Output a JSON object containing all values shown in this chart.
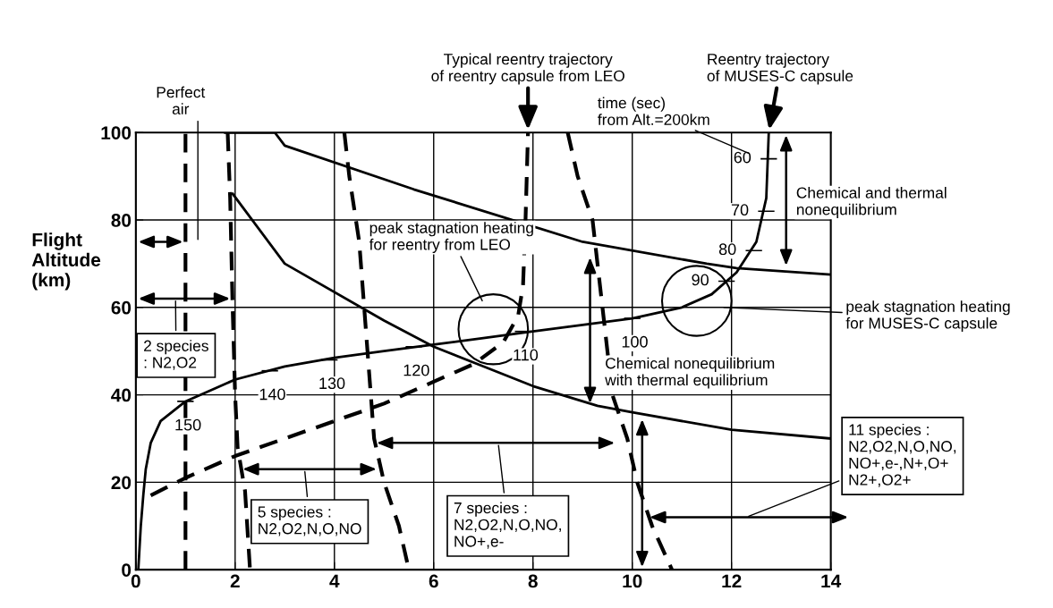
{
  "chart_data": {
    "type": "line",
    "ylabel": "Flight\nAltitude\n(km)",
    "xlim": [
      0,
      14
    ],
    "ylim": [
      0,
      100
    ],
    "xticks": [
      0,
      2,
      4,
      6,
      8,
      10,
      12,
      14
    ],
    "yticks": [
      0,
      20,
      40,
      60,
      80,
      100
    ],
    "grid": true,
    "series": [
      {
        "color": "#000000",
        "line_style": "solid",
        "x": [
          0.05,
          0.1,
          0.15,
          0.2,
          0.3,
          0.5,
          1.0,
          1.5,
          2.0,
          3.0,
          4.0,
          5.0,
          6.0,
          7.0,
          8.0,
          9.0,
          10.0,
          11.0,
          11.6,
          12.1,
          12.5,
          12.7,
          12.75
        ],
        "values": [
          0,
          10,
          17,
          23,
          29,
          34,
          38.5,
          41,
          43.5,
          46.5,
          48.5,
          50,
          51.5,
          53,
          54.5,
          56,
          57.5,
          60,
          63,
          68,
          75,
          85,
          100
        ]
      },
      {
        "color": "#000000",
        "line_style": "dashed",
        "x": [
          0.3,
          1.0,
          2.0,
          3.0,
          4.0,
          5.0,
          6.0,
          6.8,
          7.4,
          7.7,
          7.8,
          7.85,
          7.9
        ],
        "values": [
          17,
          21,
          26,
          30,
          34,
          38,
          43,
          47,
          52,
          58,
          65,
          80,
          100
        ]
      },
      {
        "color": "#000000",
        "line_style": "dashed",
        "x": [
          1.0,
          1.0
        ],
        "values": [
          0,
          100
        ]
      },
      {
        "color": "#000000",
        "line_style": "dashed",
        "x": [
          1.85,
          1.9,
          1.95,
          2.0,
          2.05,
          2.2,
          2.3
        ],
        "values": [
          100,
          85,
          60,
          40,
          28,
          18,
          0
        ]
      },
      {
        "color": "#000000",
        "line_style": "dashed",
        "x": [
          4.2,
          4.3,
          4.5,
          4.6,
          4.7,
          4.8,
          5.0,
          5.3,
          5.5
        ],
        "values": [
          100,
          90,
          75,
          60,
          45,
          30,
          20,
          10,
          0
        ]
      },
      {
        "color": "#000000",
        "line_style": "dashed",
        "x": [
          8.7,
          8.9,
          9.2,
          9.3,
          9.4,
          9.5,
          9.6,
          9.9,
          10.1,
          10.4,
          10.8
        ],
        "values": [
          100,
          90,
          80,
          70,
          60,
          50,
          40,
          30,
          20,
          10,
          0
        ]
      },
      {
        "color": "#000000",
        "line_style": "solid",
        "x": [
          1.8,
          2.8,
          3.0,
          5.6,
          9.0,
          11.5,
          12.1,
          14.0
        ],
        "values": [
          100,
          100,
          97,
          87,
          75,
          70,
          69,
          67.5
        ]
      },
      {
        "color": "#000000",
        "line_style": "solid",
        "x": [
          1.95,
          3.0,
          5.0,
          6.0,
          7.0,
          8.0,
          9.3,
          10.0,
          12.0,
          14.0
        ],
        "values": [
          86,
          70,
          57,
          51,
          46.5,
          42,
          37.5,
          36,
          32,
          30
        ]
      }
    ],
    "annotations": [
      "Typical reentry trajectory\nof reentry capsule from LEO",
      "Reentry trajectory\nof MUSES-C capsule",
      "time (sec)\nfrom Alt.=200km",
      "Perfect\nair",
      "Chemical and thermal\nnonequilibrium",
      "peak stagnation heating\nfor reentry from LEO",
      "peak stagnation heating\nfor MUSES-C capsule",
      {
        "text": "Chemical nonequilibrium\nwith thermal equilibrium",
        "x": 9.2,
        "y": 55
      },
      "2 species\n: N2,O2",
      "5 species :\nN2,O2,N,O,NO",
      "7 species :\nN2,O2,N,O,NO,\nNO+,e-",
      "11 species :\nN2,O2,N,O,NO,\nNO+,e-,N+,O+\nN2+,O2+",
      {
        "text": "60",
        "x": 12.75,
        "y": 94
      },
      {
        "text": "70",
        "x": 12.7,
        "y": 82
      },
      {
        "text": "80",
        "x": 12.45,
        "y": 73
      },
      {
        "text": "90",
        "x": 11.9,
        "y": 66
      },
      {
        "text": "100",
        "x": 10.0,
        "y": 57.5
      },
      {
        "text": "110",
        "x": 7.8,
        "y": 54.5
      },
      {
        "text": "120",
        "x": 5.6,
        "y": 51
      },
      {
        "text": "130",
        "x": 3.9,
        "y": 48
      },
      {
        "text": "140",
        "x": 2.7,
        "y": 45.5
      },
      {
        "text": "150",
        "x": 1.0,
        "y": 38.5
      }
    ]
  }
}
